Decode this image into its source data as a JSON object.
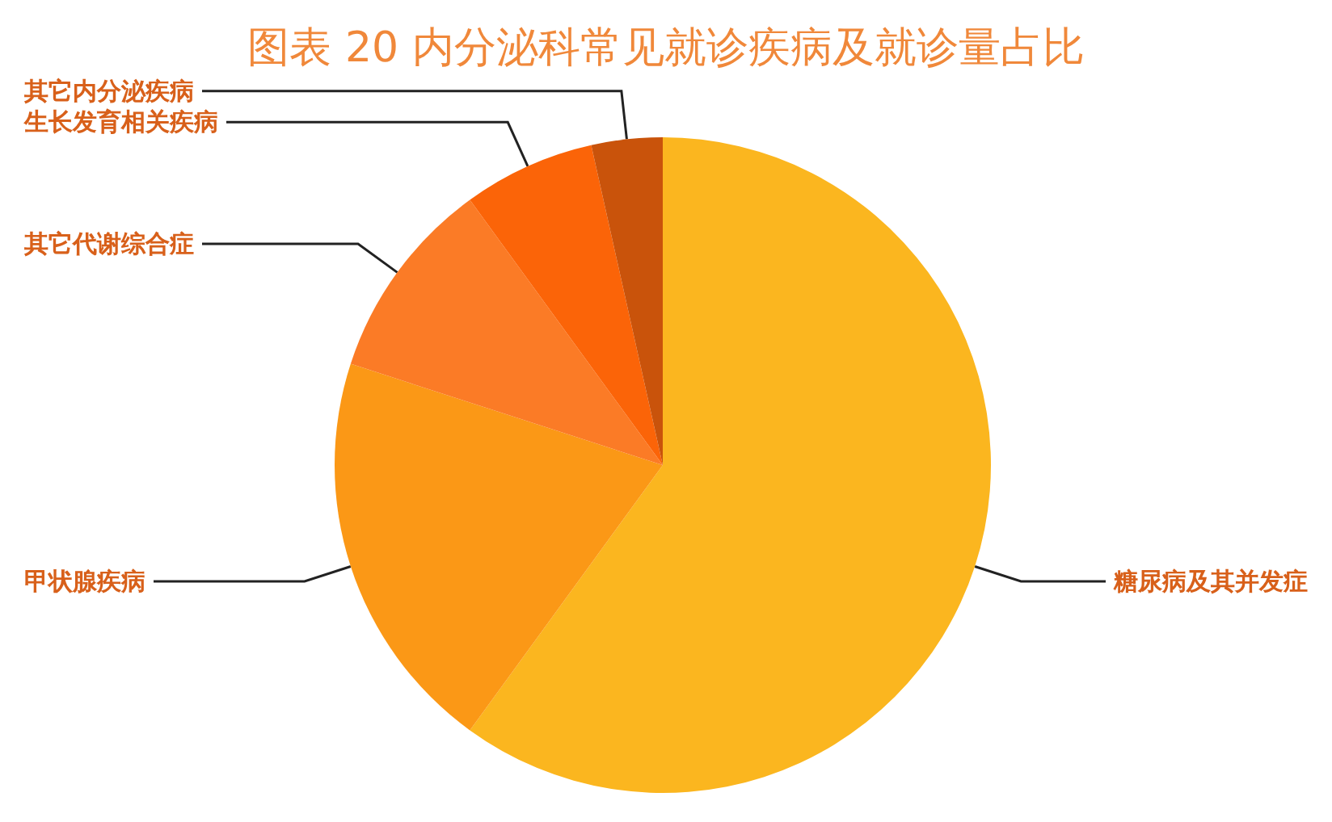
{
  "chart_data": {
    "type": "pie",
    "title": "图表 20 内分泌科常见就诊疾病及就诊量占比",
    "categories": [
      "糖尿病及其并发症",
      "甲状腺疾病",
      "其它代谢综合症",
      "生长发育相关疾病",
      "其它内分泌疾病"
    ],
    "values": [
      60,
      20,
      10,
      6.5,
      3.5
    ],
    "colors": [
      "#fbb61f",
      "#fb9816",
      "#fb7b26",
      "#fb6408",
      "#c9530b"
    ]
  }
}
